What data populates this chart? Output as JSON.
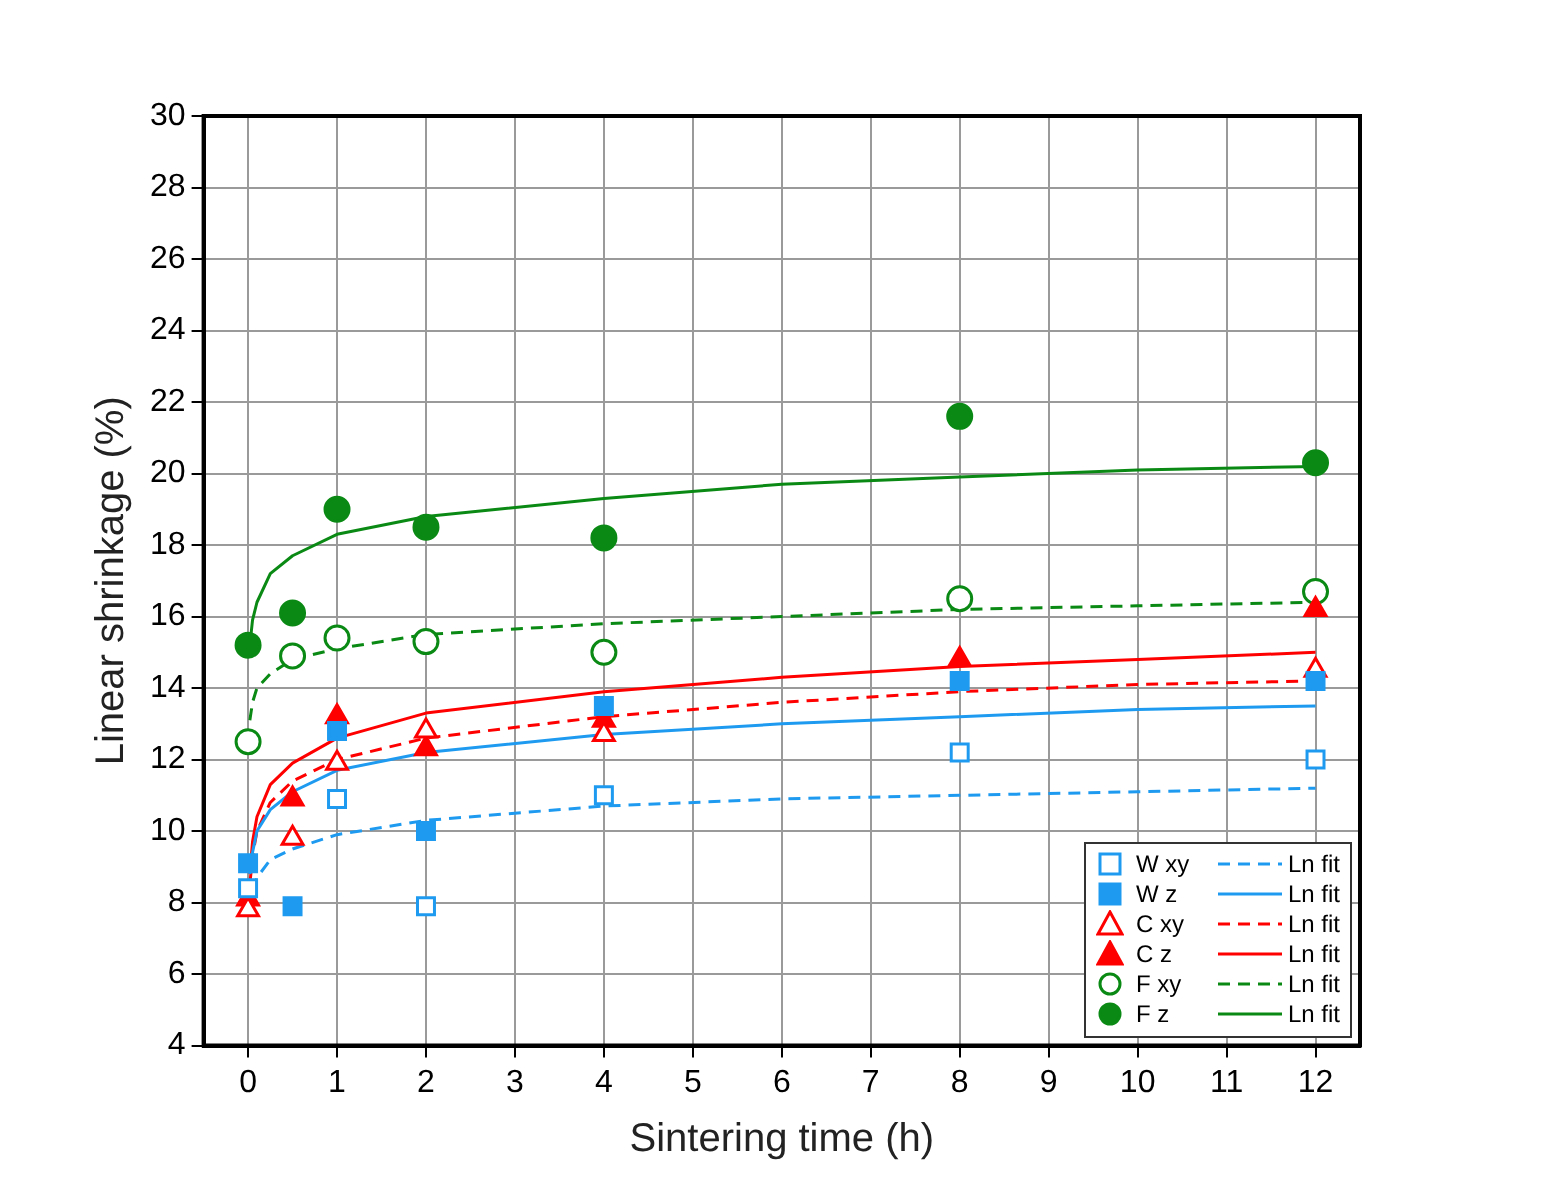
{
  "chart_data": {
    "type": "scatter",
    "xlabel": "Sintering time (h)",
    "ylabel": "Linear shrinkage (%)",
    "x": [
      0,
      0.5,
      1,
      2,
      4,
      8,
      12
    ],
    "xlim": [
      -0.5,
      12.5
    ],
    "xticks": [
      0,
      1,
      2,
      3,
      4,
      5,
      6,
      7,
      8,
      9,
      10,
      11,
      12
    ],
    "ylim": [
      4,
      30
    ],
    "yticks": [
      4,
      6,
      8,
      10,
      12,
      14,
      16,
      18,
      20,
      22,
      24,
      26,
      28,
      30
    ],
    "grid": true,
    "legend": "bottom right",
    "series": [
      {
        "name": "W xy",
        "color": "#1e9bf0",
        "marker": "square-open",
        "values": [
          8.4,
          null,
          10.9,
          7.9,
          11.0,
          12.2,
          12.0
        ]
      },
      {
        "name": "Ln fit",
        "type": "line",
        "color": "#1e9bf0",
        "line_style": "dashed",
        "x": [
          0.02,
          0.05,
          0.1,
          0.25,
          0.5,
          1,
          2,
          4,
          6,
          8,
          10,
          12
        ],
        "values": [
          7.8,
          8.3,
          8.7,
          9.2,
          9.5,
          9.9,
          10.3,
          10.7,
          10.9,
          11.0,
          11.1,
          11.2
        ]
      },
      {
        "name": "W z",
        "color": "#1e9bf0",
        "marker": "square",
        "values": [
          9.1,
          7.9,
          12.8,
          10.0,
          13.5,
          14.2,
          14.2
        ]
      },
      {
        "name": "Ln fit",
        "type": "line",
        "color": "#1e9bf0",
        "line_style": "solid",
        "x": [
          0.02,
          0.05,
          0.1,
          0.25,
          0.5,
          1,
          2,
          4,
          6,
          8,
          10,
          12
        ],
        "values": [
          8.8,
          9.4,
          10.0,
          10.6,
          11.1,
          11.7,
          12.2,
          12.7,
          13.0,
          13.2,
          13.4,
          13.5
        ]
      },
      {
        "name": "C xy",
        "color": "#ff0000",
        "marker": "triangle-open",
        "values": [
          7.8,
          9.8,
          11.9,
          12.8,
          12.7,
          null,
          14.5
        ]
      },
      {
        "name": "Ln fit",
        "type": "line",
        "color": "#ff0000",
        "line_style": "dashed",
        "x": [
          0.02,
          0.05,
          0.1,
          0.25,
          0.5,
          1,
          2,
          4,
          6,
          8,
          10,
          12
        ],
        "values": [
          8.5,
          9.3,
          10.0,
          10.8,
          11.4,
          12.0,
          12.6,
          13.2,
          13.6,
          13.9,
          14.1,
          14.2
        ]
      },
      {
        "name": "C z",
        "color": "#ff0000",
        "marker": "triangle",
        "values": [
          8.1,
          10.9,
          13.2,
          12.3,
          13.1,
          14.8,
          16.2
        ]
      },
      {
        "name": "Ln fit",
        "type": "line",
        "color": "#ff0000",
        "line_style": "solid",
        "x": [
          0.02,
          0.05,
          0.1,
          0.25,
          0.5,
          1,
          2,
          4,
          6,
          8,
          10,
          12
        ],
        "values": [
          8.8,
          9.7,
          10.4,
          11.3,
          11.9,
          12.6,
          13.3,
          13.9,
          14.3,
          14.6,
          14.8,
          15.0
        ]
      },
      {
        "name": "F xy",
        "color": "#0a8a14",
        "marker": "circle-open",
        "values": [
          12.5,
          14.9,
          15.4,
          15.3,
          15.0,
          16.5,
          16.7
        ]
      },
      {
        "name": "Ln fit",
        "type": "line",
        "color": "#0a8a14",
        "line_style": "dashed",
        "x": [
          0.02,
          0.05,
          0.1,
          0.25,
          0.5,
          1,
          2,
          4,
          6,
          8,
          10,
          12
        ],
        "values": [
          13.1,
          13.6,
          14.0,
          14.4,
          14.8,
          15.1,
          15.5,
          15.8,
          16.0,
          16.2,
          16.3,
          16.4
        ]
      },
      {
        "name": "F z",
        "color": "#0a8a14",
        "marker": "circle",
        "values": [
          15.2,
          16.1,
          19.0,
          18.5,
          18.2,
          21.6,
          20.3
        ]
      },
      {
        "name": "Ln fit",
        "type": "line",
        "color": "#0a8a14",
        "line_style": "solid",
        "x": [
          0.02,
          0.05,
          0.1,
          0.25,
          0.5,
          1,
          2,
          4,
          6,
          8,
          10,
          12
        ],
        "values": [
          15.2,
          15.9,
          16.4,
          17.2,
          17.7,
          18.3,
          18.8,
          19.3,
          19.7,
          19.9,
          20.1,
          20.2
        ]
      }
    ]
  }
}
